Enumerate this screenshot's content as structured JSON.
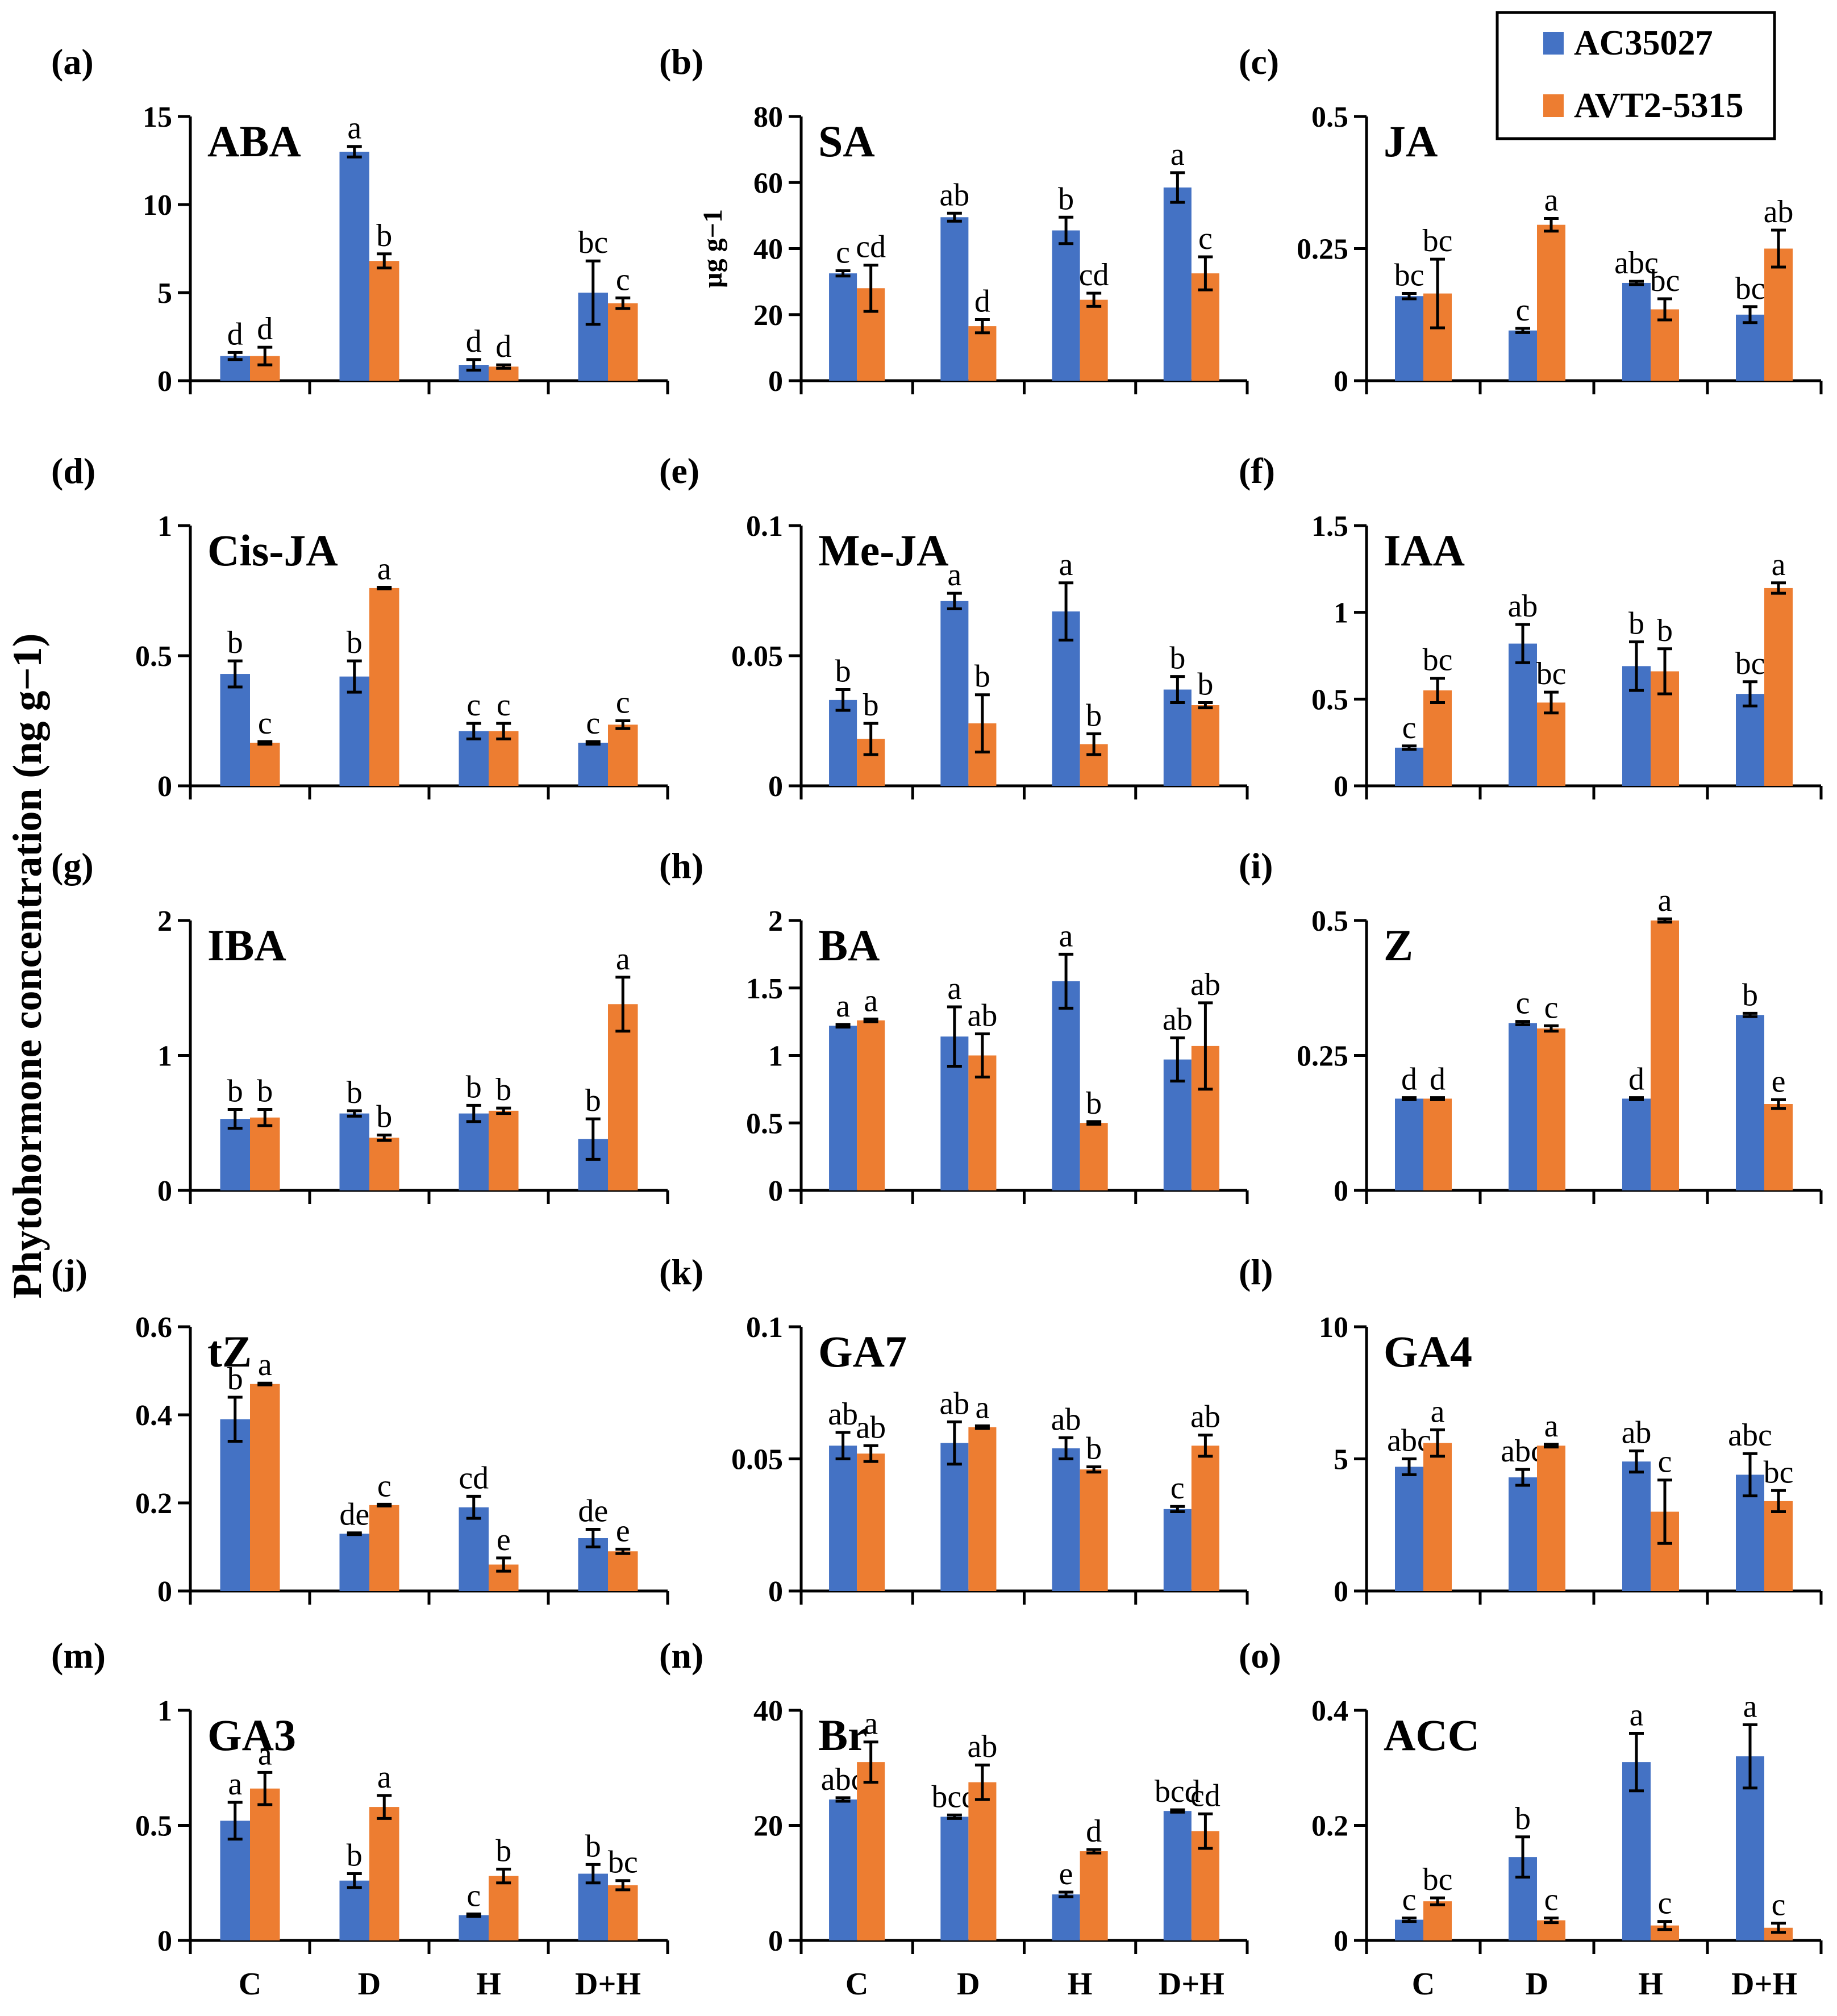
{
  "y_axis_label": "Phytohormone concentration (ng g−1)",
  "legend": [
    {
      "name": "AC35027",
      "color": "#4472C4"
    },
    {
      "name": "AVT2-5315",
      "color": "#ED7D31"
    }
  ],
  "chart_data": [
    {
      "type": "bar",
      "panel": "(a)",
      "title": "ABA",
      "unit": "",
      "categories": [
        "",
        "",
        "",
        ""
      ],
      "ylim": [
        0,
        15
      ],
      "yticks": [
        "0",
        "5",
        "10",
        "15"
      ],
      "series": [
        {
          "name": "AC35027",
          "values": [
            1.4,
            13.0,
            0.9,
            5.0
          ],
          "errors": [
            0.2,
            0.3,
            0.3,
            1.8
          ],
          "letters": [
            "d",
            "a",
            "d",
            "bc"
          ]
        },
        {
          "name": "AVT2-5315",
          "values": [
            1.4,
            6.8,
            0.8,
            4.4
          ],
          "errors": [
            0.5,
            0.4,
            0.1,
            0.3
          ],
          "letters": [
            "d",
            "b",
            "d",
            "c"
          ]
        }
      ]
    },
    {
      "type": "bar",
      "panel": "(b)",
      "title": "SA",
      "unit": "µg g−1",
      "categories": [
        "",
        "",
        "",
        ""
      ],
      "ylim": [
        0,
        80
      ],
      "yticks": [
        "0",
        "20",
        "40",
        "60",
        "80"
      ],
      "series": [
        {
          "name": "AC35027",
          "values": [
            32.5,
            49.5,
            45.5,
            58.5
          ],
          "errors": [
            0.8,
            1.2,
            4.0,
            4.5
          ],
          "letters": [
            "c",
            "ab",
            "b",
            "a"
          ]
        },
        {
          "name": "AVT2-5315",
          "values": [
            28.0,
            16.5,
            24.5,
            32.5
          ],
          "errors": [
            7.0,
            2.0,
            2.0,
            5.0
          ],
          "letters": [
            "cd",
            "d",
            "cd",
            "c"
          ]
        }
      ]
    },
    {
      "type": "bar",
      "panel": "(c)",
      "title": "JA",
      "unit": "",
      "categories": [
        "",
        "",
        "",
        ""
      ],
      "ylim": [
        0,
        0.5
      ],
      "yticks": [
        "0",
        "0.25",
        "0.5"
      ],
      "series": [
        {
          "name": "AC35027",
          "values": [
            0.16,
            0.095,
            0.185,
            0.125
          ],
          "errors": [
            0.005,
            0.004,
            0.003,
            0.015
          ],
          "letters": [
            "bc",
            "c",
            "abc",
            "bc"
          ]
        },
        {
          "name": "AVT2-5315",
          "values": [
            0.165,
            0.295,
            0.135,
            0.25
          ],
          "errors": [
            0.065,
            0.012,
            0.02,
            0.035
          ],
          "letters": [
            "bc",
            "a",
            "bc",
            "ab"
          ]
        }
      ]
    },
    {
      "type": "bar",
      "panel": "(d)",
      "title": "Cis-JA",
      "unit": "",
      "categories": [
        "",
        "",
        "",
        ""
      ],
      "ylim": [
        0,
        1
      ],
      "yticks": [
        "0",
        "0.5",
        "1"
      ],
      "series": [
        {
          "name": "AC35027",
          "values": [
            0.43,
            0.42,
            0.21,
            0.165
          ],
          "errors": [
            0.05,
            0.06,
            0.03,
            0.005
          ],
          "letters": [
            "b",
            "b",
            "c",
            "c"
          ]
        },
        {
          "name": "AVT2-5315",
          "values": [
            0.165,
            0.76,
            0.21,
            0.235
          ],
          "errors": [
            0.005,
            0.003,
            0.03,
            0.015
          ],
          "letters": [
            "c",
            "a",
            "c",
            "c"
          ]
        }
      ]
    },
    {
      "type": "bar",
      "panel": "(e)",
      "title": "Me-JA",
      "unit": "",
      "categories": [
        "",
        "",
        "",
        ""
      ],
      "ylim": [
        0,
        0.1
      ],
      "yticks": [
        "0",
        "0.05",
        "0.1"
      ],
      "series": [
        {
          "name": "AC35027",
          "values": [
            0.033,
            0.071,
            0.067,
            0.037
          ],
          "errors": [
            0.004,
            0.003,
            0.011,
            0.005
          ],
          "letters": [
            "b",
            "a",
            "a",
            "b"
          ]
        },
        {
          "name": "AVT2-5315",
          "values": [
            0.018,
            0.024,
            0.016,
            0.031
          ],
          "errors": [
            0.006,
            0.011,
            0.004,
            0.001
          ],
          "letters": [
            "b",
            "b",
            "b",
            "b"
          ]
        }
      ]
    },
    {
      "type": "bar",
      "panel": "(f)",
      "title": "IAA",
      "unit": "",
      "categories": [
        "",
        "",
        "",
        ""
      ],
      "ylim": [
        0,
        1.5
      ],
      "yticks": [
        "0",
        "0.5",
        "1",
        "1.5"
      ],
      "series": [
        {
          "name": "AC35027",
          "values": [
            0.22,
            0.82,
            0.69,
            0.53
          ],
          "errors": [
            0.01,
            0.11,
            0.14,
            0.07
          ],
          "letters": [
            "c",
            "ab",
            "b",
            "bc"
          ]
        },
        {
          "name": "AVT2-5315",
          "values": [
            0.55,
            0.48,
            0.66,
            1.14
          ],
          "errors": [
            0.07,
            0.06,
            0.13,
            0.03
          ],
          "letters": [
            "bc",
            "bc",
            "b",
            "a"
          ]
        }
      ]
    },
    {
      "type": "bar",
      "panel": "(g)",
      "title": "IBA",
      "unit": "",
      "categories": [
        "",
        "",
        "",
        ""
      ],
      "ylim": [
        0,
        2
      ],
      "yticks": [
        "0",
        "1",
        "2"
      ],
      "series": [
        {
          "name": "AC35027",
          "values": [
            0.53,
            0.57,
            0.57,
            0.38
          ],
          "errors": [
            0.07,
            0.02,
            0.06,
            0.15
          ],
          "letters": [
            "b",
            "b",
            "b",
            "b"
          ]
        },
        {
          "name": "AVT2-5315",
          "values": [
            0.54,
            0.39,
            0.59,
            1.38
          ],
          "errors": [
            0.06,
            0.02,
            0.02,
            0.2
          ],
          "letters": [
            "b",
            "b",
            "b",
            "a"
          ]
        }
      ]
    },
    {
      "type": "bar",
      "panel": "(h)",
      "title": "BA",
      "unit": "",
      "categories": [
        "",
        "",
        "",
        ""
      ],
      "ylim": [
        0,
        2
      ],
      "yticks": [
        "0",
        "0.5",
        "1",
        "1.5",
        "2"
      ],
      "series": [
        {
          "name": "AC35027",
          "values": [
            1.22,
            1.14,
            1.55,
            0.97
          ],
          "errors": [
            0.01,
            0.22,
            0.2,
            0.16
          ],
          "letters": [
            "a",
            "a",
            "a",
            "ab"
          ]
        },
        {
          "name": "AVT2-5315",
          "values": [
            1.26,
            1.0,
            0.5,
            1.07
          ],
          "errors": [
            0.01,
            0.16,
            0.01,
            0.32
          ],
          "letters": [
            "a",
            "ab",
            "b",
            "ab"
          ]
        }
      ]
    },
    {
      "type": "bar",
      "panel": "(i)",
      "title": "Z",
      "unit": "",
      "categories": [
        "",
        "",
        "",
        ""
      ],
      "ylim": [
        0,
        0.5
      ],
      "yticks": [
        "0",
        "0.25",
        "0.5"
      ],
      "series": [
        {
          "name": "AC35027",
          "values": [
            0.17,
            0.31,
            0.17,
            0.325
          ],
          "errors": [
            0.002,
            0.003,
            0.002,
            0.003
          ],
          "letters": [
            "d",
            "c",
            "d",
            "b"
          ]
        },
        {
          "name": "AVT2-5315",
          "values": [
            0.17,
            0.3,
            0.5,
            0.16
          ],
          "errors": [
            0.002,
            0.005,
            0.003,
            0.008
          ],
          "letters": [
            "d",
            "c",
            "a",
            "e"
          ]
        }
      ]
    },
    {
      "type": "bar",
      "panel": "(j)",
      "title": "tZ",
      "unit": "",
      "categories": [
        "",
        "",
        "",
        ""
      ],
      "ylim": [
        0,
        0.6
      ],
      "yticks": [
        "0",
        "0.2",
        "0.4",
        "0.6"
      ],
      "series": [
        {
          "name": "AC35027",
          "values": [
            0.39,
            0.13,
            0.19,
            0.12
          ],
          "errors": [
            0.05,
            0.002,
            0.025,
            0.02
          ],
          "letters": [
            "b",
            "de",
            "cd",
            "de"
          ]
        },
        {
          "name": "AVT2-5315",
          "values": [
            0.47,
            0.195,
            0.06,
            0.09
          ],
          "errors": [
            0.002,
            0.002,
            0.015,
            0.005
          ],
          "letters": [
            "a",
            "c",
            "e",
            "e"
          ]
        }
      ]
    },
    {
      "type": "bar",
      "panel": "(k)",
      "title": "GA7",
      "unit": "",
      "categories": [
        "",
        "",
        "",
        ""
      ],
      "ylim": [
        0,
        0.1
      ],
      "yticks": [
        "0",
        "0.05",
        "0.1"
      ],
      "series": [
        {
          "name": "AC35027",
          "values": [
            0.055,
            0.056,
            0.054,
            0.031
          ],
          "errors": [
            0.005,
            0.008,
            0.004,
            0.001
          ],
          "letters": [
            "ab",
            "ab",
            "ab",
            "c"
          ]
        },
        {
          "name": "AVT2-5315",
          "values": [
            0.052,
            0.062,
            0.046,
            0.055
          ],
          "errors": [
            0.003,
            0.0005,
            0.001,
            0.004
          ],
          "letters": [
            "ab",
            "a",
            "b",
            "ab"
          ]
        }
      ]
    },
    {
      "type": "bar",
      "panel": "(l)",
      "title": "GA4",
      "unit": "",
      "categories": [
        "",
        "",
        "",
        ""
      ],
      "ylim": [
        0,
        10
      ],
      "yticks": [
        "0",
        "5",
        "10"
      ],
      "series": [
        {
          "name": "AC35027",
          "values": [
            4.7,
            4.3,
            4.9,
            4.4
          ],
          "errors": [
            0.3,
            0.3,
            0.4,
            0.8
          ],
          "letters": [
            "abc",
            "abc",
            "ab",
            "abc"
          ]
        },
        {
          "name": "AVT2-5315",
          "values": [
            5.6,
            5.5,
            3.0,
            3.4
          ],
          "errors": [
            0.5,
            0.05,
            1.2,
            0.4
          ],
          "letters": [
            "a",
            "a",
            "c",
            "bc"
          ]
        }
      ]
    },
    {
      "type": "bar",
      "panel": "(m)",
      "title": "GA3",
      "unit": "",
      "categories": [
        "C",
        "D",
        "H",
        "D+H"
      ],
      "ylim": [
        0,
        1
      ],
      "yticks": [
        "0",
        "0.5",
        "1"
      ],
      "series": [
        {
          "name": "AC35027",
          "values": [
            0.52,
            0.26,
            0.11,
            0.29
          ],
          "errors": [
            0.08,
            0.03,
            0.005,
            0.04
          ],
          "letters": [
            "a",
            "b",
            "c",
            "b"
          ]
        },
        {
          "name": "AVT2-5315",
          "values": [
            0.66,
            0.58,
            0.28,
            0.24
          ],
          "errors": [
            0.07,
            0.05,
            0.03,
            0.02
          ],
          "letters": [
            "a",
            "a",
            "b",
            "bc"
          ]
        }
      ]
    },
    {
      "type": "bar",
      "panel": "(n)",
      "title": "Br",
      "unit": "",
      "categories": [
        "C",
        "D",
        "H",
        "D+H"
      ],
      "ylim": [
        0,
        40
      ],
      "yticks": [
        "0",
        "20",
        "40"
      ],
      "series": [
        {
          "name": "AC35027",
          "values": [
            24.5,
            21.5,
            8.0,
            22.5
          ],
          "errors": [
            0.3,
            0.3,
            0.4,
            0.2
          ],
          "letters": [
            "abc",
            "bcd",
            "e",
            "bcd"
          ]
        },
        {
          "name": "AVT2-5315",
          "values": [
            31.0,
            27.5,
            15.5,
            19.0
          ],
          "errors": [
            3.5,
            3.0,
            0.3,
            3.0
          ],
          "letters": [
            "a",
            "ab",
            "d",
            "cd"
          ]
        }
      ]
    },
    {
      "type": "bar",
      "panel": "(o)",
      "title": "ACC",
      "unit": "",
      "categories": [
        "C",
        "D",
        "H",
        "D+H"
      ],
      "ylim": [
        0,
        0.4
      ],
      "yticks": [
        "0",
        "0.2",
        "0.4"
      ],
      "series": [
        {
          "name": "AC35027",
          "values": [
            0.036,
            0.145,
            0.31,
            0.32
          ],
          "errors": [
            0.003,
            0.035,
            0.05,
            0.055
          ],
          "letters": [
            "c",
            "b",
            "a",
            "a"
          ]
        },
        {
          "name": "AVT2-5315",
          "values": [
            0.068,
            0.035,
            0.026,
            0.022
          ],
          "errors": [
            0.006,
            0.004,
            0.007,
            0.008
          ],
          "letters": [
            "bc",
            "c",
            "c",
            "c"
          ]
        }
      ]
    }
  ]
}
